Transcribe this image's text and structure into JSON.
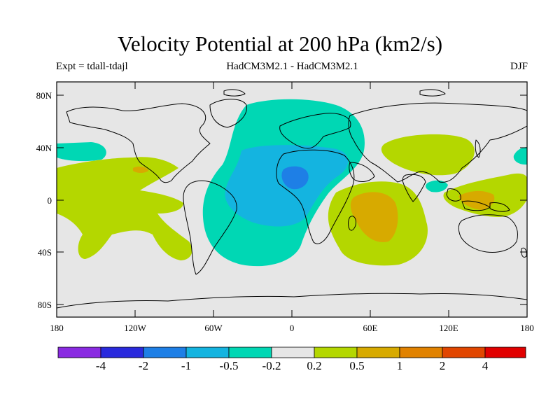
{
  "title": "Velocity Potential at 200 hPa (km2/s)",
  "subtitle_left": "Expt = tdall-tdajl",
  "subtitle_center": "HadCM3M2.1 - HadCM3M2.1",
  "subtitle_right": "DJF",
  "colors": {
    "background_neutral": "#e6e6e6",
    "lvl_neg_4": "#8a2be2",
    "lvl_neg_2": "#2a2add",
    "lvl_neg_1": "#1e7fe6",
    "lvl_neg_05": "#14b4e0",
    "lvl_neg_02": "#00d7b4",
    "lvl_pos_02": "#e6e6e6",
    "lvl_pos_05": "#b4d700",
    "lvl_pos_1": "#d7aa00",
    "lvl_pos_2": "#e18200",
    "lvl_pos_4": "#e14600",
    "lvl_max": "#e10000"
  },
  "y_ticks": [
    "80N",
    "40N",
    "0",
    "40S",
    "80S"
  ],
  "x_ticks": [
    "180",
    "120W",
    "60W",
    "0",
    "60E",
    "120E",
    "180"
  ],
  "colorbar": {
    "labels": [
      "-4",
      "-2",
      "-1",
      "-0.5",
      "-0.2",
      "0.2",
      "0.5",
      "1",
      "2",
      "4"
    ],
    "swatches": [
      "#8a2be2",
      "#2a2add",
      "#1e7fe6",
      "#14b4e0",
      "#00d7b4",
      "#e6e6e6",
      "#b4d700",
      "#d7aa00",
      "#e18200",
      "#e14600",
      "#e10000"
    ]
  }
}
